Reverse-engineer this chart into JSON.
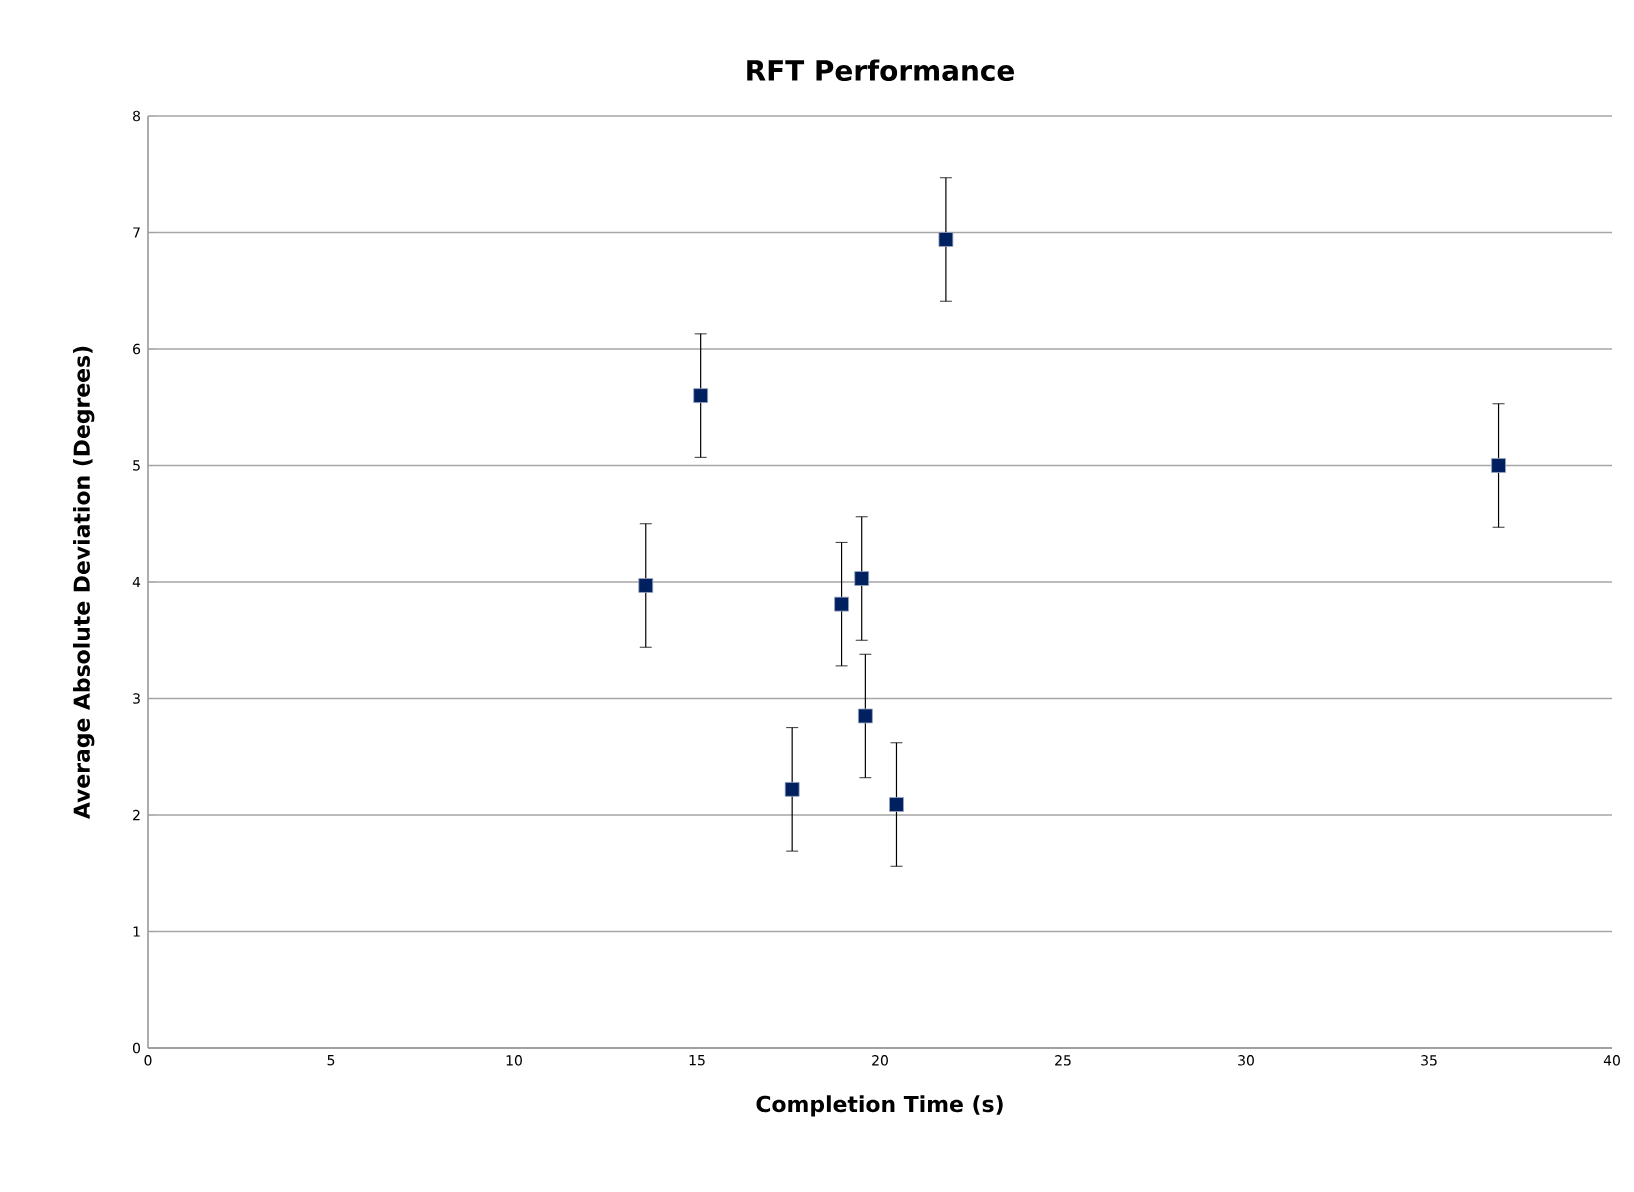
{
  "chart_data": {
    "type": "scatter",
    "title": "RFT Performance",
    "xlabel": "Completion Time (s)",
    "ylabel": "Average Absolute Deviation (Degrees)",
    "x": [
      13.6,
      15.1,
      21.8,
      18.95,
      19.5,
      19.6,
      17.6,
      20.45,
      36.9
    ],
    "values": [
      3.97,
      5.6,
      6.94,
      3.81,
      4.03,
      2.85,
      2.22,
      2.09,
      5.0
    ],
    "errors": [
      0.53,
      0.53,
      0.53,
      0.53,
      0.53,
      0.53,
      0.53,
      0.53,
      0.53
    ],
    "color": "#002060",
    "marker": "square",
    "xlim": [
      0,
      40
    ],
    "xticks": [
      0,
      5,
      10,
      15,
      20,
      25,
      30,
      35,
      40
    ],
    "ylim": [
      0,
      8
    ],
    "yticks": [
      0,
      1,
      2,
      3,
      4,
      5,
      6,
      7,
      8
    ],
    "grid": "y"
  }
}
